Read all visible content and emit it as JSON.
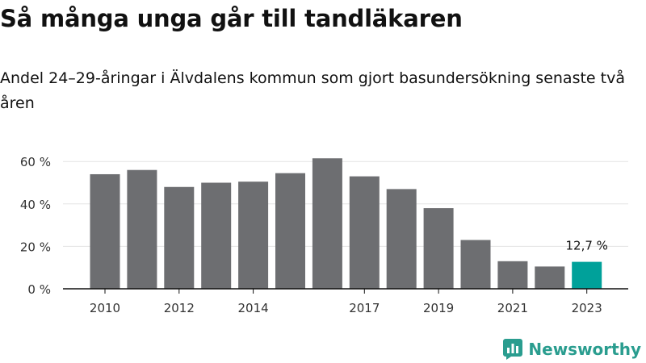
{
  "header": {
    "title": "Så många unga går till tandläkaren",
    "subtitle": "Andel 24–29-åringar i Älvdalens kommun som gjort basundersökning senaste två åren"
  },
  "brand": {
    "name": "Newsworthy"
  },
  "colors": {
    "bar": "#6d6e71",
    "highlight": "#00a19a",
    "brand": "#2a9d8f"
  },
  "chart_data": {
    "type": "bar",
    "title": "Så många unga går till tandläkaren",
    "subtitle": "Andel 24–29-åringar i Älvdalens kommun som gjort basundersökning senaste två åren",
    "categories": [
      "2010",
      "2011",
      "2012",
      "2013",
      "2014",
      "2015",
      "2016",
      "2017",
      "2018",
      "2019",
      "2020",
      "2021",
      "2022",
      "2023"
    ],
    "values": [
      54,
      56,
      48,
      50,
      50.5,
      54.5,
      61.5,
      53,
      47,
      38,
      23,
      13,
      10.5,
      12.7
    ],
    "x_tick_labels": [
      "2010",
      "2012",
      "2014",
      "2017",
      "2019",
      "2021",
      "2023"
    ],
    "y_ticks": [
      "0 %",
      "20 %",
      "40 %",
      "60 %"
    ],
    "ylim": [
      0,
      65
    ],
    "highlight": {
      "category": "2023",
      "label": "12,7 %"
    },
    "grid": true,
    "legend": "none"
  }
}
